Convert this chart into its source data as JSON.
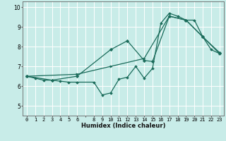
{
  "xlabel": "Humidex (Indice chaleur)",
  "xlim": [
    -0.5,
    23.5
  ],
  "ylim": [
    4.5,
    10.3
  ],
  "yticks": [
    5,
    6,
    7,
    8,
    9,
    10
  ],
  "bg_color": "#c8ece8",
  "line_color": "#1a6b5a",
  "grid_color": "#ffffff",
  "line1_x": [
    0,
    1,
    2,
    3,
    4,
    5,
    6,
    8,
    9,
    10,
    11,
    12,
    13,
    14,
    15,
    16,
    17,
    18,
    19,
    20,
    21,
    22,
    23
  ],
  "line1_y": [
    6.5,
    6.4,
    6.3,
    6.3,
    6.25,
    6.2,
    6.2,
    6.2,
    5.55,
    5.65,
    6.35,
    6.45,
    7.0,
    6.4,
    6.9,
    9.2,
    9.7,
    9.55,
    9.35,
    9.35,
    8.5,
    7.85,
    7.65
  ],
  "line2_x": [
    0,
    3,
    6,
    10,
    12,
    14,
    15,
    17,
    19,
    21,
    23
  ],
  "line2_y": [
    6.5,
    6.3,
    6.5,
    7.85,
    8.3,
    7.3,
    7.25,
    9.55,
    9.35,
    8.5,
    7.7
  ],
  "line3_x": [
    0,
    6,
    10,
    14,
    17,
    19,
    21,
    23
  ],
  "line3_y": [
    6.5,
    6.6,
    7.0,
    7.4,
    9.55,
    9.35,
    8.5,
    7.65
  ]
}
